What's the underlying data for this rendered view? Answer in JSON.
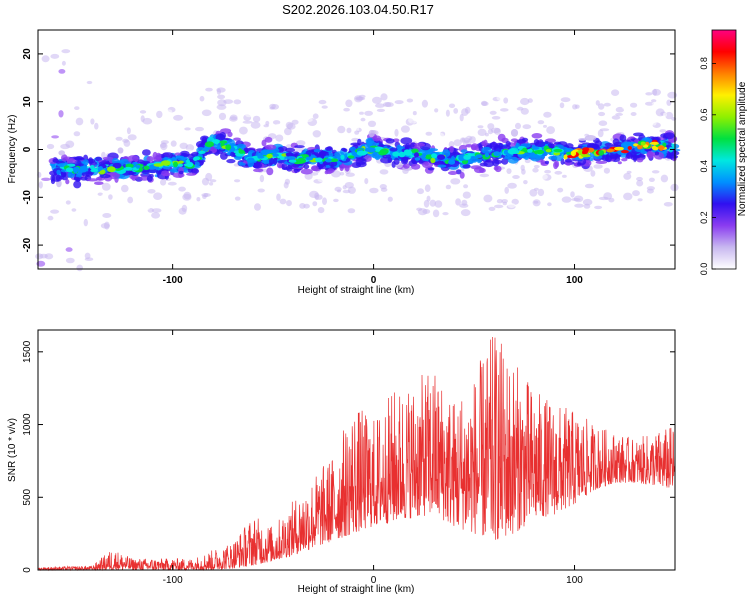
{
  "title": "S202.2026.103.04.50.R17",
  "chart_data": [
    {
      "type": "heatmap",
      "xlabel": "Height of straight line (km)",
      "ylabel": "Frequency (Hz)",
      "xlim": [
        -167,
        150
      ],
      "ylim": [
        -25,
        25
      ],
      "xticks": [
        -100,
        0,
        100
      ],
      "yticks": [
        -20,
        -10,
        0,
        10,
        20
      ],
      "grid": false,
      "colorbar": {
        "label": "Normalized spectral amplitude",
        "range": [
          0.0,
          0.93
        ],
        "ticks": [
          0.0,
          0.2,
          0.4,
          0.6,
          0.8
        ],
        "tick_labels": [
          "0.0",
          "0.2",
          "0.4",
          "0.6",
          "0.8"
        ],
        "colors": [
          "#ffffff",
          "#c8b8f0",
          "#8a3cf0",
          "#3010f0",
          "#0090ff",
          "#00e8e0",
          "#00e040",
          "#90f000",
          "#fff000",
          "#ff8000",
          "#ff0000",
          "#ff0080"
        ]
      },
      "ridge": {
        "description_points_x": [
          -160,
          -140,
          -120,
          -100,
          -90,
          -80,
          -70,
          -60,
          -50,
          -40,
          -30,
          -20,
          -10,
          0,
          20,
          40,
          60,
          80,
          100,
          120,
          140,
          150
        ],
        "description_points_freq": [
          -4,
          -4,
          -4,
          -3,
          -3,
          2,
          0,
          -2,
          -1,
          -2,
          -2,
          -2,
          -1,
          0,
          -1,
          -2,
          -1,
          0,
          -1,
          0,
          1,
          0
        ]
      }
    },
    {
      "type": "line",
      "xlabel": "Height of straight line (km)",
      "ylabel": "SNR (10 * v/v)",
      "xlim": [
        -167,
        150
      ],
      "ylim": [
        0,
        1650
      ],
      "xticks": [
        -100,
        0,
        100
      ],
      "yticks": [
        0,
        500,
        1000,
        1500
      ],
      "grid": false,
      "series_color": "#e83030",
      "envelope": {
        "x": [
          -167,
          -140,
          -130,
          -120,
          -100,
          -90,
          -80,
          -70,
          -60,
          -50,
          -40,
          -30,
          -20,
          -10,
          0,
          10,
          20,
          30,
          40,
          50,
          60,
          70,
          80,
          90,
          100,
          110,
          120,
          130,
          140,
          150
        ],
        "low": [
          0,
          0,
          0,
          0,
          0,
          0,
          0,
          10,
          30,
          60,
          100,
          150,
          200,
          250,
          300,
          330,
          360,
          380,
          300,
          250,
          200,
          250,
          350,
          380,
          450,
          550,
          600,
          600,
          580,
          550
        ],
        "high": [
          20,
          30,
          150,
          80,
          80,
          80,
          140,
          200,
          380,
          300,
          480,
          650,
          800,
          1150,
          1050,
          1250,
          1300,
          1400,
          1200,
          1350,
          1650,
          1450,
          1250,
          1150,
          1100,
          1000,
          950,
          900,
          950,
          1000
        ]
      }
    }
  ]
}
